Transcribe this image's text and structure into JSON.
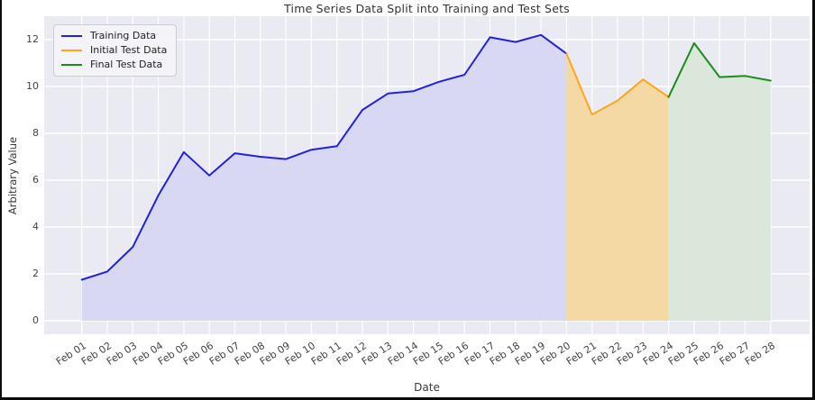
{
  "figure": {
    "title": "Time Series Data Split into Training and Test Sets",
    "xlabel": "Date",
    "ylabel": "Arbitrary Value"
  },
  "legend": {
    "position": "upper-left",
    "items": [
      {
        "label": "Training Data",
        "color": "#2222dd"
      },
      {
        "label": "Initial Test Data",
        "color": "#ffa51c"
      },
      {
        "label": "Final Test Data",
        "color": "#1d8c1d"
      }
    ]
  },
  "chart_data": {
    "type": "line",
    "title": "Time Series Data Split into Training and Test Sets",
    "xlabel": "Date",
    "ylabel": "Arbitrary Value",
    "categories": [
      "Feb 01",
      "Feb 02",
      "Feb 03",
      "Feb 04",
      "Feb 05",
      "Feb 06",
      "Feb 07",
      "Feb 08",
      "Feb 09",
      "Feb 10",
      "Feb 11",
      "Feb 12",
      "Feb 13",
      "Feb 14",
      "Feb 15",
      "Feb 16",
      "Feb 17",
      "Feb 18",
      "Feb 19",
      "Feb 20",
      "Feb 21",
      "Feb 22",
      "Feb 23",
      "Feb 24",
      "Feb 25",
      "Feb 26",
      "Feb 27",
      "Feb 28"
    ],
    "y_ticks": [
      0,
      2,
      4,
      6,
      8,
      10,
      12
    ],
    "ylim": [
      -0.6,
      13.0
    ],
    "grid": true,
    "plot_background": "#eaeaf2",
    "grid_color": "#ffffff",
    "series": [
      {
        "name": "Training Data",
        "color": "#2222dd",
        "fill": "#d8d8f2",
        "start_index": 0,
        "values": [
          1.75,
          2.1,
          3.15,
          5.35,
          7.2,
          6.2,
          7.15,
          7.0,
          6.9,
          7.3,
          7.45,
          9.0,
          9.7,
          9.8,
          10.2,
          10.5,
          12.1,
          11.9,
          12.2,
          11.4
        ]
      },
      {
        "name": "Initial Test Data",
        "color": "#ffa51c",
        "fill": "#f4d9a4",
        "start_index": 19,
        "values": [
          11.4,
          8.8,
          9.4,
          10.3,
          9.55
        ]
      },
      {
        "name": "Final Test Data",
        "color": "#1d8c1d",
        "fill": "#dae7da",
        "start_index": 23,
        "values": [
          9.55,
          11.85,
          10.4,
          10.45,
          10.25
        ]
      }
    ]
  }
}
